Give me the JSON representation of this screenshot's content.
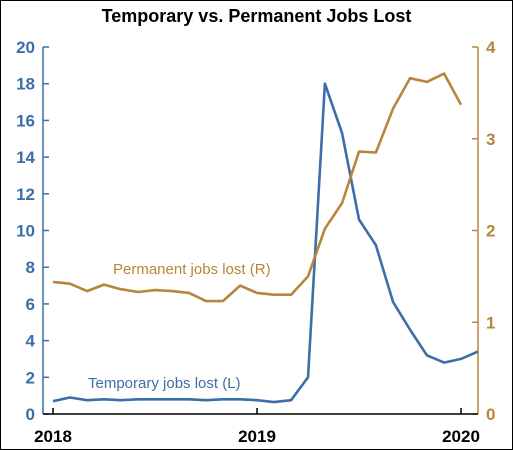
{
  "title": "Temporary vs. Permanent Jobs Lost",
  "colors": {
    "temporary": "#3c6ea8",
    "permanent": "#b7863a",
    "axis": "#000000"
  },
  "chart_data": {
    "type": "line",
    "title": "Temporary vs. Permanent Jobs Lost",
    "x_ticks": [
      "2018",
      "2019",
      "2020"
    ],
    "x_domain": [
      2018,
      2020
    ],
    "left_axis": {
      "ticks": [
        "0",
        "2",
        "4",
        "6",
        "8",
        "10",
        "12",
        "14",
        "16",
        "18",
        "20"
      ],
      "ylim": [
        0,
        20
      ]
    },
    "right_axis": {
      "ticks": [
        "0",
        "1",
        "2",
        "3",
        "4"
      ],
      "ylim": [
        0,
        4
      ]
    },
    "series": [
      {
        "name": "Temporary jobs lost (L)",
        "axis": "left",
        "x": [
          2018.0,
          2018.083,
          2018.167,
          2018.25,
          2018.333,
          2018.417,
          2018.5,
          2018.583,
          2018.667,
          2018.75,
          2018.833,
          2018.917,
          2019.0,
          2019.083,
          2019.167,
          2019.25,
          2019.333,
          2019.417,
          2019.5,
          2019.583,
          2019.667,
          2019.75,
          2019.833,
          2019.917,
          2020.0,
          2020.083
        ],
        "values": [
          0.7,
          0.9,
          0.75,
          0.8,
          0.75,
          0.8,
          0.8,
          0.8,
          0.8,
          0.75,
          0.8,
          0.8,
          0.75,
          0.65,
          0.75,
          2.0,
          18.0,
          15.3,
          10.6,
          9.2,
          6.1,
          4.6,
          3.2,
          2.8,
          3.0,
          3.4
        ]
      },
      {
        "name": "Permanent jobs lost (R)",
        "axis": "right",
        "x": [
          2018.0,
          2018.083,
          2018.167,
          2018.25,
          2018.333,
          2018.417,
          2018.5,
          2018.583,
          2018.667,
          2018.75,
          2018.833,
          2018.917,
          2019.0,
          2019.083,
          2019.167,
          2019.25,
          2019.333,
          2019.417,
          2019.5,
          2019.583,
          2019.667,
          2019.75,
          2019.833,
          2019.917,
          2020.0
        ],
        "values": [
          1.44,
          1.42,
          1.34,
          1.41,
          1.36,
          1.33,
          1.35,
          1.34,
          1.32,
          1.23,
          1.23,
          1.4,
          1.32,
          1.3,
          1.3,
          1.5,
          2.02,
          2.3,
          2.86,
          2.85,
          3.33,
          3.66,
          3.62,
          3.71,
          3.37
        ]
      }
    ],
    "annotations": [
      "Permanent jobs lost (R)",
      "Temporary jobs lost (L)"
    ],
    "grid": false,
    "legend": "none"
  }
}
